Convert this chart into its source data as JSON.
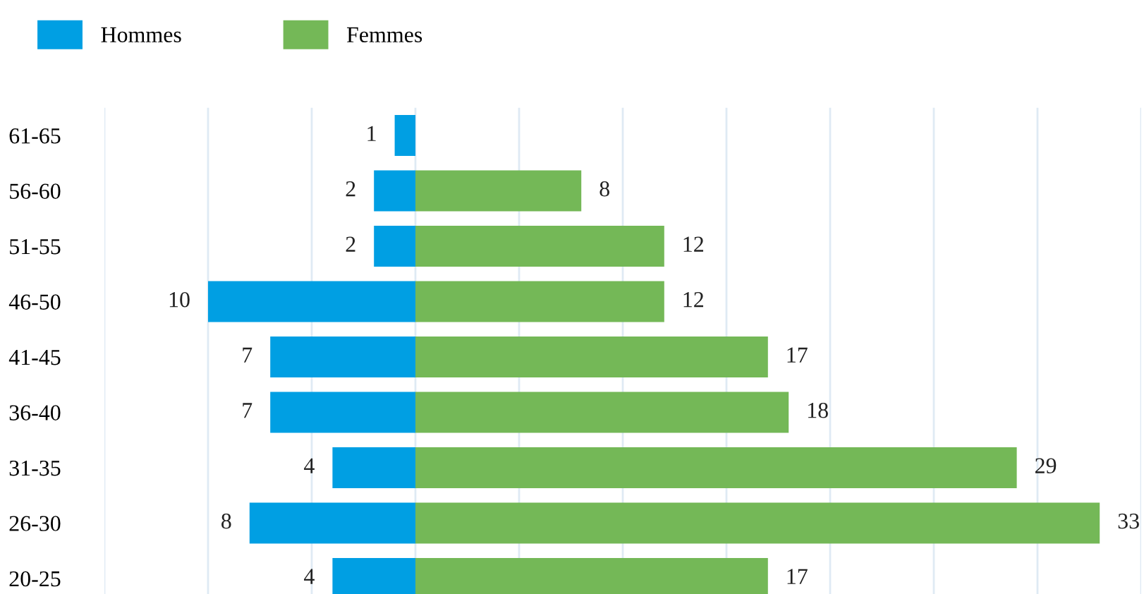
{
  "chart_data": [
    {
      "type": "bar",
      "orientation": "horizontal",
      "categories": [
        "61-65",
        "56-60",
        "51-55",
        "46-50",
        "41-45",
        "36-40",
        "31-35",
        "26-30",
        "20-25"
      ],
      "series": [
        {
          "name": "Hommes",
          "color": "#009fe3",
          "values": [
            1,
            2,
            2,
            10,
            7,
            7,
            4,
            8,
            4
          ]
        }
      ],
      "data_labels": true,
      "xlim": [
        15,
        0
      ],
      "xticks": [
        {
          "value": 15,
          "label": null
        },
        {
          "value": 10,
          "label": null
        },
        {
          "value": 5,
          "label": null
        },
        {
          "value": 0,
          "label": null
        }
      ],
      "grid": "x",
      "legend": "top left",
      "tick_labels": "y"
    },
    {
      "type": "bar",
      "orientation": "horizontal",
      "categories": [
        null,
        null,
        null,
        null,
        null,
        null,
        null,
        null,
        null
      ],
      "series": [
        {
          "name": "Femmes",
          "color": "#74b857",
          "values": [
            null,
            8,
            12,
            12,
            17,
            18,
            29,
            33,
            17
          ]
        }
      ],
      "data_labels": true,
      "xlim": [
        0,
        35
      ],
      "xticks": [
        {
          "value": 0,
          "label": null
        },
        {
          "value": 5,
          "label": null
        },
        {
          "value": 10,
          "label": null
        },
        {
          "value": 15,
          "label": null
        },
        {
          "value": 20,
          "label": null
        },
        {
          "value": 25,
          "label": null
        },
        {
          "value": 30,
          "label": null
        },
        {
          "value": 35,
          "label": null
        }
      ],
      "grid": "x",
      "legend": "top left",
      "tick_labels": false
    }
  ]
}
